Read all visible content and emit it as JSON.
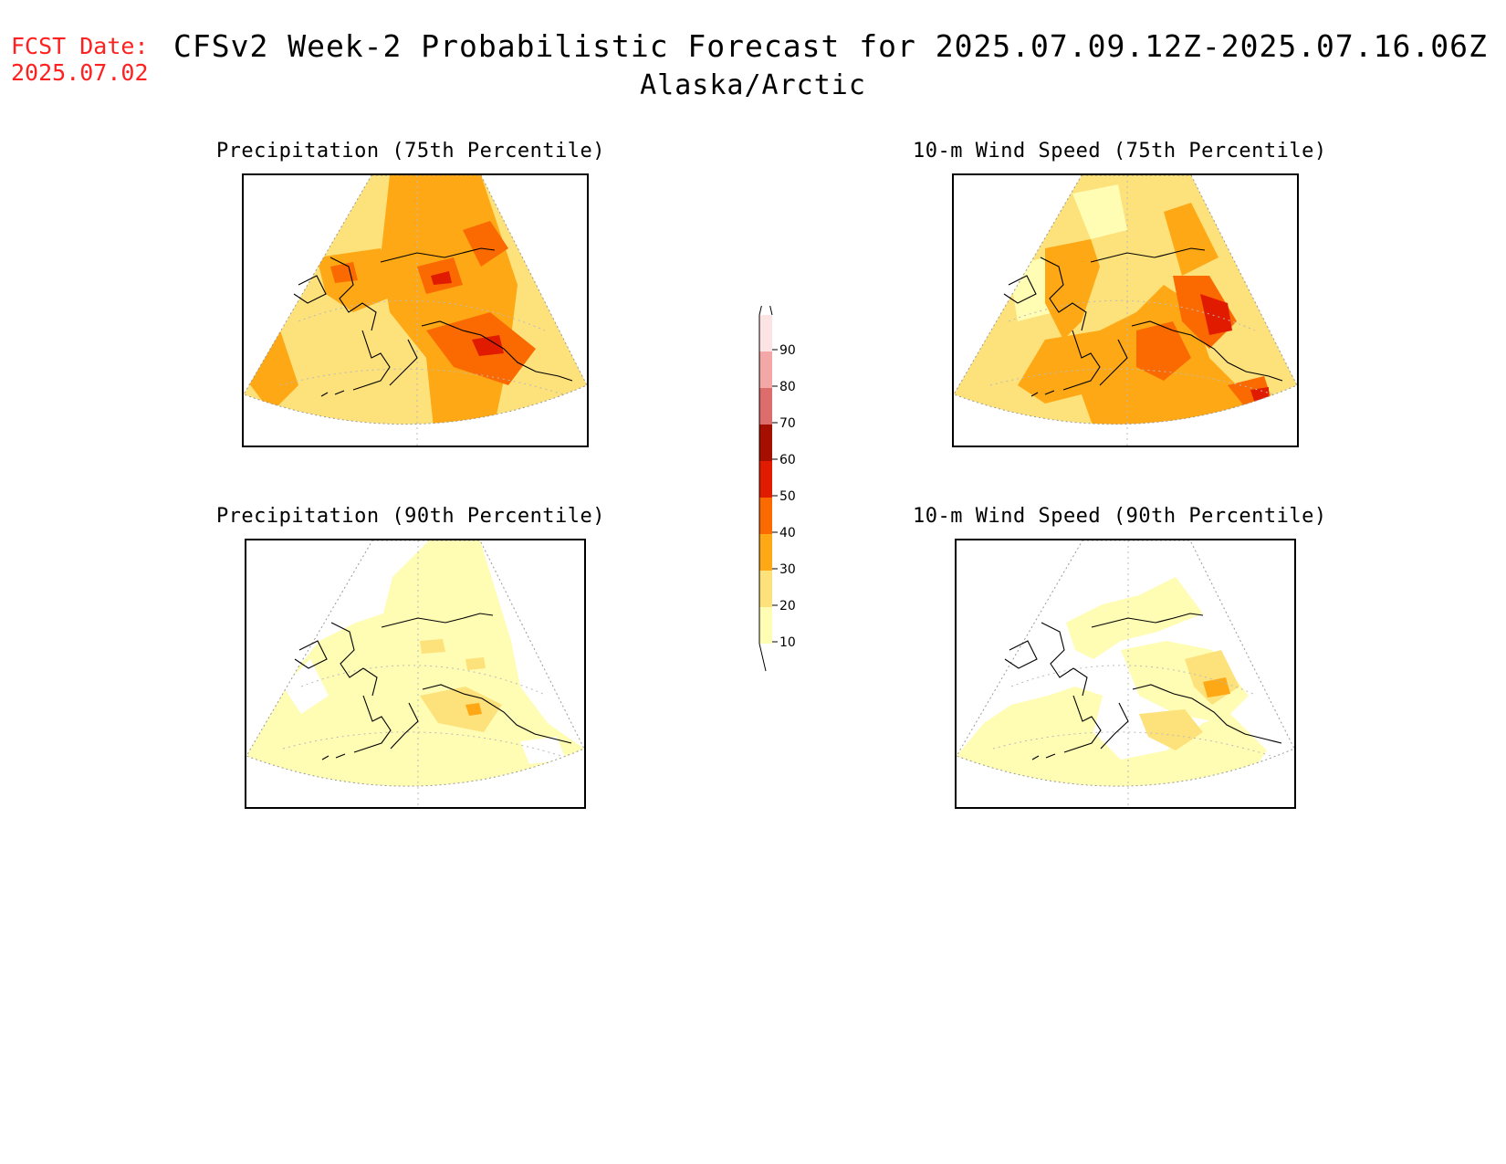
{
  "fcst": {
    "label": "FCST Date:",
    "date": "2025.07.02"
  },
  "title": "CFSv2 Week-2 Probabilistic Forecast for 2025.07.09.12Z-2025.07.16.06Z",
  "subtitle": "Alaska/Arctic",
  "panels": [
    {
      "title": "Precipitation (75th Percentile)"
    },
    {
      "title": "10-m Wind Speed (75th Percentile)"
    },
    {
      "title": "Precipitation (90th Percentile)"
    },
    {
      "title": "10-m Wind Speed (90th Percentile)"
    }
  ],
  "colorbar": {
    "levels": [
      "10",
      "20",
      "30",
      "40",
      "50",
      "60",
      "70",
      "80",
      "90"
    ],
    "colors": [
      "#fffcb4",
      "#fde17a",
      "#fda814",
      "#fb6a00",
      "#e01b00",
      "#a50f00",
      "#dd6d6d",
      "#f4a7a7",
      "#fde4e4"
    ]
  },
  "colors": {
    "fcst_text": "#ff2020",
    "land_outline": "#000000"
  }
}
